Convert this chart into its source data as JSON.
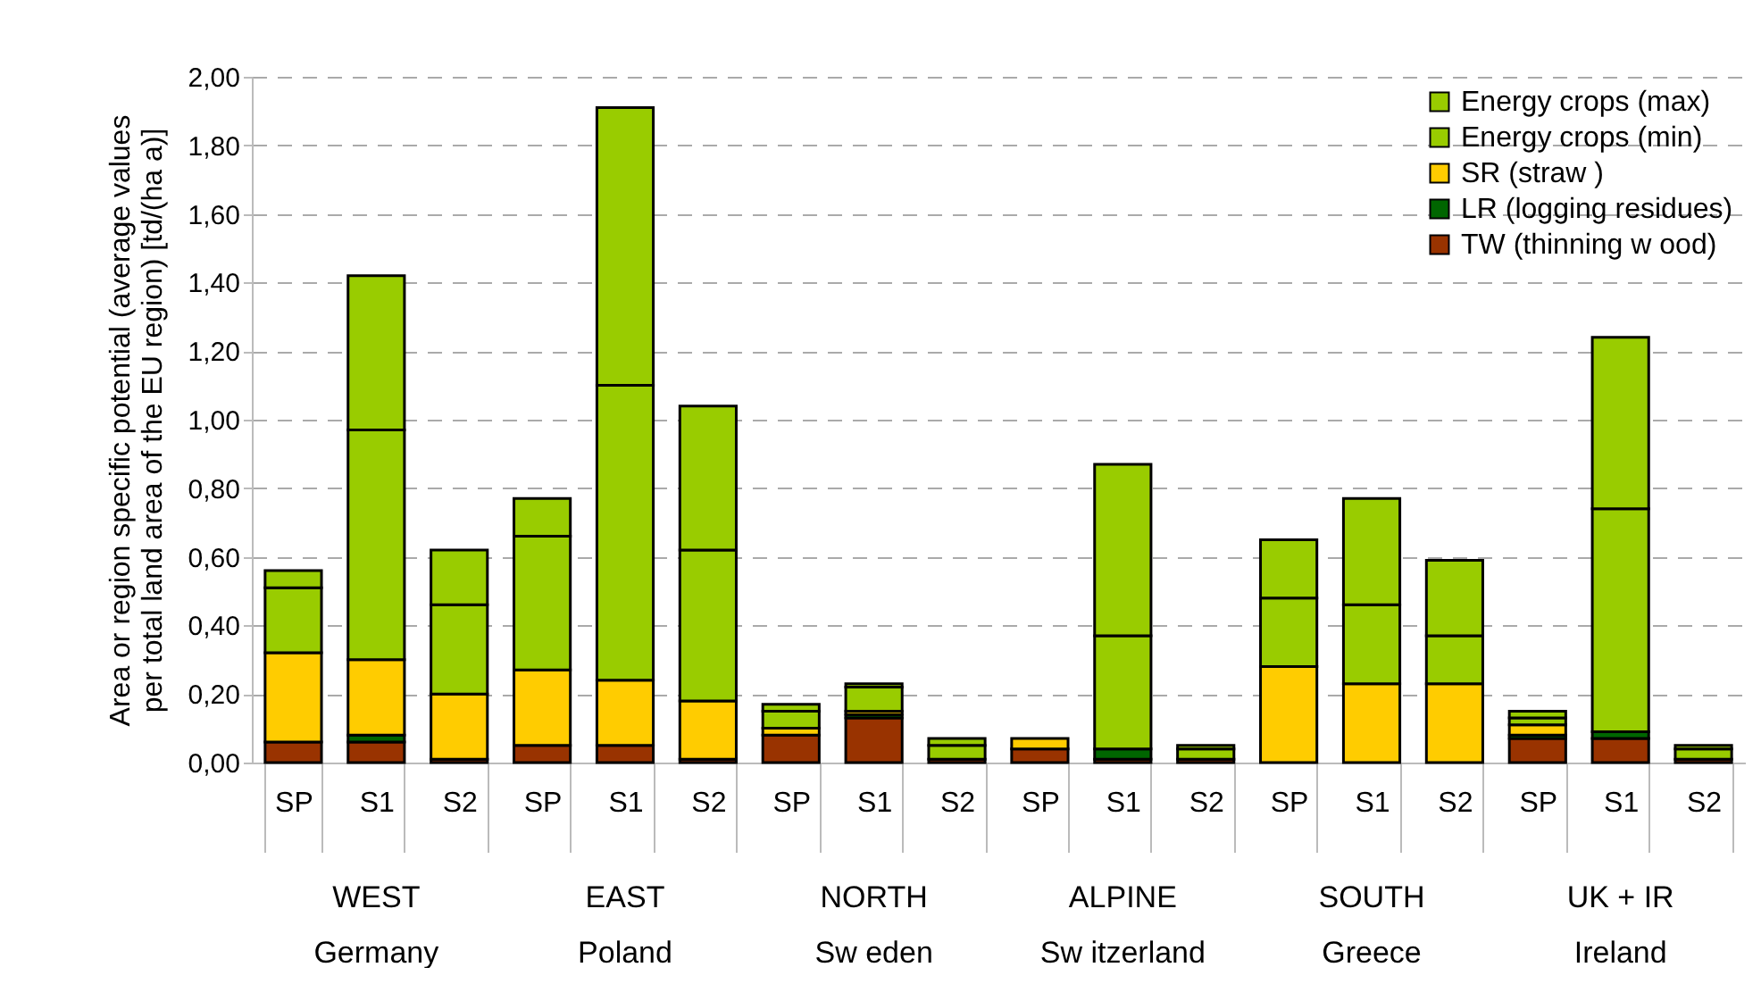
{
  "chart_data": {
    "type": "bar",
    "stacked": true,
    "ylabel": "Area or region specific potential (average values per total land area of the EU region) [td/(ha a)]",
    "categories": [
      "SP",
      "S1",
      "S2",
      "SP",
      "S1",
      "S2",
      "SP",
      "S1",
      "S2",
      "SP",
      "S1",
      "S2",
      "SP",
      "S1",
      "S2",
      "SP",
      "S1",
      "S2"
    ],
    "series": [
      {
        "name": "TW (thinning w ood)",
        "color": "#993300",
        "values": [
          0.06,
          0.06,
          0.01,
          0.05,
          0.05,
          0.01,
          0.08,
          0.13,
          0.01,
          0.04,
          0.01,
          0.01,
          0,
          0,
          0,
          0.07,
          0.07,
          0.01
        ]
      },
      {
        "name": "LR (logging residues)",
        "color": "#006600",
        "values": [
          null,
          0.02,
          0,
          0,
          0,
          0,
          0,
          0.01,
          0,
          0,
          0.03,
          0,
          0,
          0,
          0,
          0.01,
          0.02,
          0
        ]
      },
      {
        "name": "SR (straw )",
        "color": "#ffcc00",
        "values": [
          0.26,
          0.22,
          0.19,
          0.22,
          0.19,
          0.17,
          0.02,
          0.01,
          0,
          0.03,
          0,
          0,
          0.28,
          0.23,
          0.23,
          0.03,
          0,
          0
        ]
      },
      {
        "name": "Energy crops (min)",
        "color": "#99cc00",
        "values": [
          0.19,
          0.67,
          0.26,
          0.39,
          0.86,
          0.44,
          0.05,
          0.07,
          0.04,
          0,
          0.33,
          0.03,
          0.2,
          0.23,
          0.14,
          0.02,
          0.65,
          0.03
        ]
      },
      {
        "name": "Energy crops (max)",
        "color": "#99cc00",
        "values": [
          0.05,
          0.45,
          0.16,
          0.11,
          0.81,
          0.42,
          0.02,
          0.01,
          0.02,
          0,
          0.5,
          0.01,
          0.17,
          0.31,
          0.22,
          0.02,
          0.5,
          0.01
        ]
      }
    ],
    "ylim": [
      0,
      2
    ],
    "yticks": [
      {
        "value": 0,
        "label": "0,00"
      },
      {
        "value": 0.2,
        "label": "0,20"
      },
      {
        "value": 0.4,
        "label": "0,40"
      },
      {
        "value": 0.6,
        "label": "0,60"
      },
      {
        "value": 0.8,
        "label": "0,80"
      },
      {
        "value": 1,
        "label": "1,00"
      },
      {
        "value": 1.2,
        "label": "1,20"
      },
      {
        "value": 1.4,
        "label": "1,40"
      },
      {
        "value": 1.6,
        "label": "1,60"
      },
      {
        "value": 1.8,
        "label": "1,80"
      },
      {
        "value": 2,
        "label": "2,00"
      }
    ],
    "grid": "y",
    "legend": "top right",
    "annotations": [
      "WEST",
      "Germany",
      "EAST",
      "Poland",
      "NORTH",
      "Sw eden",
      "ALPINE",
      "Sw itzerland",
      "SOUTH",
      "Greece",
      "UK + IR",
      "Ireland"
    ]
  }
}
